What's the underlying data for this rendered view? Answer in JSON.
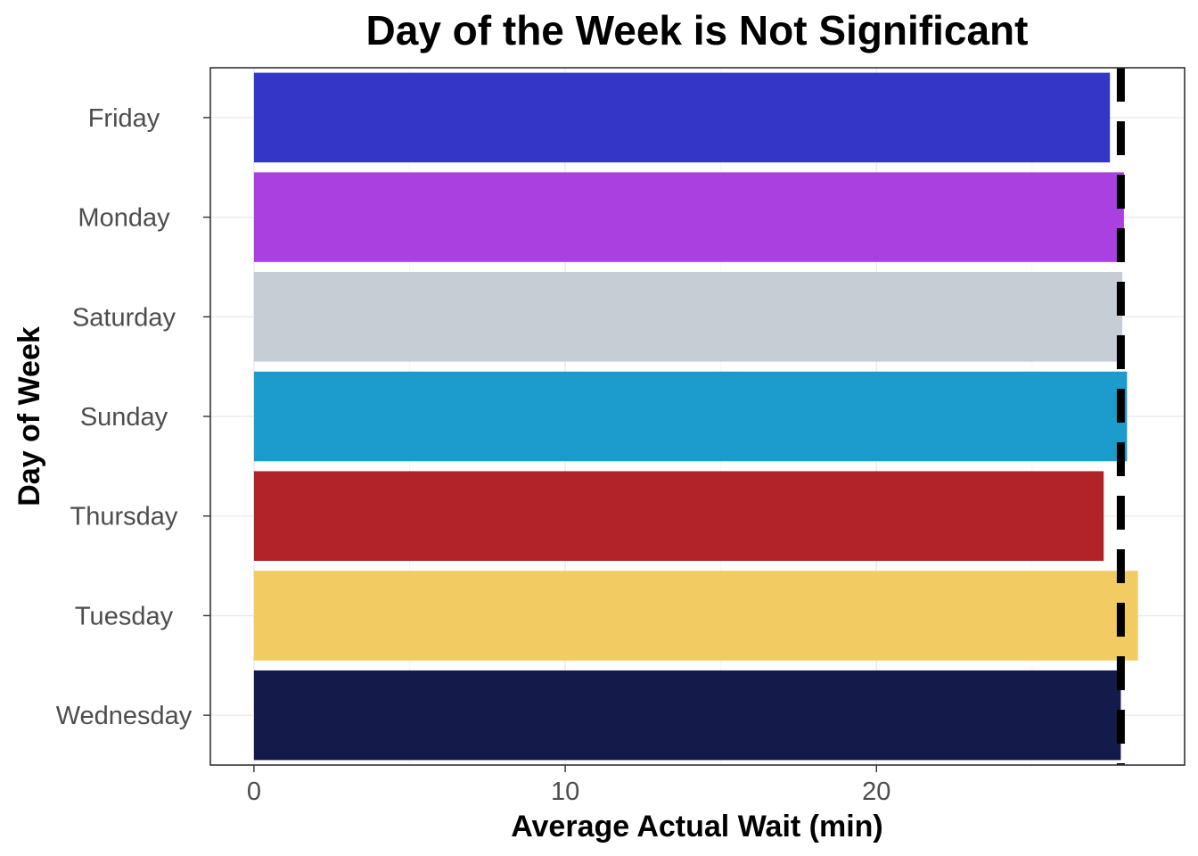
{
  "chart_data": {
    "type": "bar",
    "orientation": "horizontal",
    "title": "Day of the Week is Not Significant",
    "xlabel": "Average Actual Wait (min)",
    "ylabel": "Day of Week",
    "categories": [
      "Friday",
      "Monday",
      "Saturday",
      "Sunday",
      "Thursday",
      "Tuesday",
      "Wednesday"
    ],
    "values": [
      27.5,
      27.95,
      27.9,
      28.05,
      27.3,
      28.4,
      27.85
    ],
    "colors": [
      "#3336c7",
      "#ab40e0",
      "#c6cdd4",
      "#1c9bcd",
      "#b22229",
      "#f2cb63",
      "#141a4a"
    ],
    "xlim": [
      -1.4,
      29.9
    ],
    "xticks": [
      0,
      10,
      20
    ],
    "xtick_labels": [
      "0",
      "10",
      "20"
    ],
    "reference_line": {
      "value": 27.85,
      "style": "dashed",
      "color": "#000000"
    },
    "grid": true,
    "legend": "none"
  }
}
